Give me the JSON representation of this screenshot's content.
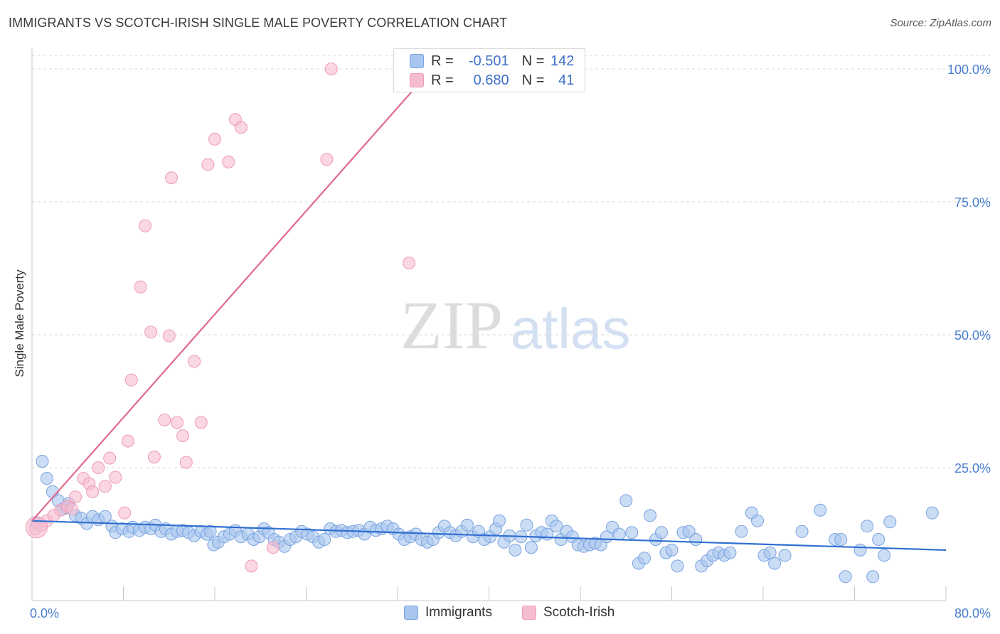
{
  "title": "IMMIGRANTS VS SCOTCH-IRISH SINGLE MALE POVERTY CORRELATION CHART",
  "source": "Source: ZipAtlas.com",
  "watermark": {
    "part1": "ZIP",
    "part2": "atlas"
  },
  "colors": {
    "blue_fill": "#a9c6ef",
    "blue_stroke": "#7aa3e0",
    "blue_line": "#2f6fd0",
    "pink_fill": "#f6bdcf",
    "pink_stroke": "#ee9cb5",
    "pink_line": "#e0698f",
    "tick_label": "#4a7fd0",
    "grid": "#d9d9d9"
  },
  "legend_top": {
    "rows": [
      {
        "series": "blue",
        "r_label": "R =",
        "r_value": "-0.501",
        "n_label": "N =",
        "n_value": "142"
      },
      {
        "series": "pink",
        "r_label": "R =",
        "r_value": "0.680",
        "n_label": "N =",
        "n_value": "41"
      }
    ]
  },
  "legend_bottom": [
    {
      "series": "blue",
      "label": "Immigrants"
    },
    {
      "series": "pink",
      "label": "Scotch-Irish"
    }
  ],
  "chart_data": {
    "type": "scatter",
    "title": "IMMIGRANTS VS SCOTCH-IRISH SINGLE MALE POVERTY CORRELATION CHART",
    "xlabel": "",
    "ylabel": "Single Male Poverty",
    "xlim": [
      0,
      80
    ],
    "ylim": [
      0,
      103
    ],
    "x_tick_labels": [
      {
        "value": 0,
        "label": "0.0%"
      },
      {
        "value": 80,
        "label": "80.0%"
      }
    ],
    "y_tick_labels": [
      {
        "value": 25,
        "label": "25.0%"
      },
      {
        "value": 50,
        "label": "50.0%"
      },
      {
        "value": 75,
        "label": "75.0%"
      },
      {
        "value": 100,
        "label": "100.0%"
      }
    ],
    "x_minor_ticks": [
      0,
      8,
      16,
      24,
      32,
      40,
      48,
      56,
      64,
      72,
      80
    ],
    "grid": true,
    "legend_position": "top-center",
    "series": [
      {
        "name": "Immigrants",
        "color": "blue",
        "r": -0.501,
        "n": 142,
        "trend": {
          "x0": 0,
          "y0": 15.0,
          "x1": 80,
          "y1": 9.5
        },
        "points": [
          [
            0.4,
            14.5
          ],
          [
            0.9,
            26.2
          ],
          [
            1.3,
            23.0
          ],
          [
            1.8,
            20.5
          ],
          [
            2.3,
            18.8
          ],
          [
            2.7,
            17.2
          ],
          [
            3.2,
            18.3
          ],
          [
            3.0,
            17.5
          ],
          [
            3.8,
            16.0
          ],
          [
            4.3,
            15.5
          ],
          [
            4.8,
            14.5
          ],
          [
            5.3,
            15.8
          ],
          [
            5.8,
            15.2
          ],
          [
            6.4,
            15.8
          ],
          [
            7.0,
            14.0
          ],
          [
            7.3,
            12.8
          ],
          [
            7.9,
            13.5
          ],
          [
            8.5,
            13.0
          ],
          [
            8.8,
            13.8
          ],
          [
            9.4,
            13.2
          ],
          [
            9.9,
            13.8
          ],
          [
            10.4,
            13.5
          ],
          [
            10.8,
            14.2
          ],
          [
            11.3,
            13.0
          ],
          [
            11.7,
            13.5
          ],
          [
            12.2,
            12.5
          ],
          [
            12.7,
            13.0
          ],
          [
            13.2,
            13.2
          ],
          [
            13.7,
            12.8
          ],
          [
            14.2,
            12.2
          ],
          [
            14.8,
            13.0
          ],
          [
            15.3,
            12.5
          ],
          [
            15.6,
            13.0
          ],
          [
            15.9,
            10.5
          ],
          [
            16.3,
            11.0
          ],
          [
            16.8,
            12.0
          ],
          [
            17.3,
            12.5
          ],
          [
            17.8,
            13.2
          ],
          [
            18.3,
            12.0
          ],
          [
            18.9,
            12.5
          ],
          [
            19.4,
            11.5
          ],
          [
            19.9,
            12.0
          ],
          [
            20.3,
            13.5
          ],
          [
            20.7,
            12.8
          ],
          [
            21.2,
            11.5
          ],
          [
            21.6,
            11.0
          ],
          [
            22.1,
            10.2
          ],
          [
            22.6,
            11.5
          ],
          [
            23.1,
            12.0
          ],
          [
            23.6,
            13.0
          ],
          [
            24.1,
            12.5
          ],
          [
            24.6,
            12.0
          ],
          [
            25.1,
            11.0
          ],
          [
            25.6,
            11.5
          ],
          [
            26.1,
            13.5
          ],
          [
            26.6,
            13.0
          ],
          [
            27.1,
            13.2
          ],
          [
            27.6,
            12.8
          ],
          [
            28.1,
            13.0
          ],
          [
            28.6,
            13.2
          ],
          [
            29.1,
            12.5
          ],
          [
            29.6,
            13.8
          ],
          [
            30.1,
            13.2
          ],
          [
            30.6,
            13.5
          ],
          [
            31.1,
            14.0
          ],
          [
            31.6,
            13.5
          ],
          [
            32.1,
            12.5
          ],
          [
            32.6,
            11.5
          ],
          [
            33.1,
            12.0
          ],
          [
            33.6,
            12.5
          ],
          [
            34.1,
            11.5
          ],
          [
            34.6,
            11.0
          ],
          [
            35.1,
            11.5
          ],
          [
            35.6,
            12.8
          ],
          [
            36.1,
            14.0
          ],
          [
            36.6,
            12.8
          ],
          [
            37.1,
            12.2
          ],
          [
            37.6,
            13.0
          ],
          [
            38.1,
            14.2
          ],
          [
            38.6,
            12.0
          ],
          [
            39.1,
            13.0
          ],
          [
            39.6,
            11.5
          ],
          [
            40.1,
            12.0
          ],
          [
            40.6,
            13.5
          ],
          [
            40.9,
            15.0
          ],
          [
            41.3,
            11.0
          ],
          [
            41.8,
            12.2
          ],
          [
            42.3,
            9.5
          ],
          [
            42.8,
            12.0
          ],
          [
            43.3,
            14.2
          ],
          [
            43.7,
            10.0
          ],
          [
            44.1,
            12.2
          ],
          [
            44.6,
            12.8
          ],
          [
            45.1,
            12.5
          ],
          [
            45.5,
            15.0
          ],
          [
            45.9,
            14.0
          ],
          [
            46.3,
            11.5
          ],
          [
            46.8,
            13.0
          ],
          [
            47.3,
            12.0
          ],
          [
            47.8,
            10.5
          ],
          [
            48.3,
            10.2
          ],
          [
            48.8,
            10.5
          ],
          [
            49.3,
            10.8
          ],
          [
            49.8,
            10.5
          ],
          [
            50.3,
            12.0
          ],
          [
            50.8,
            13.8
          ],
          [
            51.4,
            12.5
          ],
          [
            52.0,
            18.8
          ],
          [
            52.5,
            12.8
          ],
          [
            53.1,
            7.0
          ],
          [
            53.6,
            8.0
          ],
          [
            54.1,
            16.0
          ],
          [
            54.6,
            11.5
          ],
          [
            55.1,
            12.8
          ],
          [
            55.5,
            9.0
          ],
          [
            56.0,
            9.5
          ],
          [
            56.5,
            6.5
          ],
          [
            57.0,
            12.8
          ],
          [
            57.5,
            13.0
          ],
          [
            58.1,
            11.5
          ],
          [
            58.6,
            6.5
          ],
          [
            59.1,
            7.5
          ],
          [
            59.6,
            8.5
          ],
          [
            60.1,
            9.0
          ],
          [
            60.6,
            8.5
          ],
          [
            61.1,
            9.0
          ],
          [
            62.1,
            13.0
          ],
          [
            63.0,
            16.5
          ],
          [
            63.5,
            15.0
          ],
          [
            64.1,
            8.5
          ],
          [
            64.6,
            9.0
          ],
          [
            65.0,
            7.0
          ],
          [
            65.9,
            8.5
          ],
          [
            67.4,
            13.0
          ],
          [
            69.0,
            17.0
          ],
          [
            70.3,
            11.5
          ],
          [
            70.8,
            11.5
          ],
          [
            71.2,
            4.5
          ],
          [
            72.5,
            9.5
          ],
          [
            73.1,
            14.0
          ],
          [
            73.6,
            4.5
          ],
          [
            74.1,
            11.5
          ],
          [
            74.6,
            8.5
          ],
          [
            75.1,
            14.8
          ],
          [
            78.8,
            16.5
          ]
        ]
      },
      {
        "name": "Scotch-Irish",
        "color": "pink",
        "r": 0.68,
        "n": 41,
        "trend": {
          "x0": 0,
          "y0": 15.0,
          "x1": 35,
          "y1": 100.0
        },
        "points": [
          [
            0.3,
            13.5
          ],
          [
            0.8,
            14.2
          ],
          [
            1.3,
            15.0
          ],
          [
            1.9,
            16.0
          ],
          [
            2.5,
            17.0
          ],
          [
            3.1,
            17.8
          ],
          [
            3.8,
            19.5
          ],
          [
            4.5,
            23.0
          ],
          [
            5.0,
            22.0
          ],
          [
            5.3,
            20.5
          ],
          [
            5.8,
            25.0
          ],
          [
            6.4,
            21.5
          ],
          [
            6.8,
            26.8
          ],
          [
            7.3,
            23.2
          ],
          [
            8.1,
            16.5
          ],
          [
            8.4,
            30.0
          ],
          [
            8.7,
            41.5
          ],
          [
            9.5,
            59.0
          ],
          [
            9.9,
            70.5
          ],
          [
            10.4,
            50.5
          ],
          [
            10.7,
            27.0
          ],
          [
            11.6,
            34.0
          ],
          [
            12.0,
            49.8
          ],
          [
            12.2,
            79.5
          ],
          [
            12.7,
            33.5
          ],
          [
            13.2,
            31.0
          ],
          [
            13.5,
            26.0
          ],
          [
            14.2,
            45.0
          ],
          [
            14.8,
            33.5
          ],
          [
            15.4,
            82.0
          ],
          [
            16.0,
            86.8
          ],
          [
            17.2,
            82.5
          ],
          [
            17.8,
            90.5
          ],
          [
            18.3,
            89.0
          ],
          [
            19.2,
            6.5
          ],
          [
            21.1,
            10.0
          ],
          [
            25.8,
            83.0
          ],
          [
            26.2,
            100.0
          ],
          [
            33.0,
            63.5
          ],
          [
            34.2,
            100.5
          ],
          [
            3.5,
            17.2
          ]
        ]
      }
    ]
  }
}
